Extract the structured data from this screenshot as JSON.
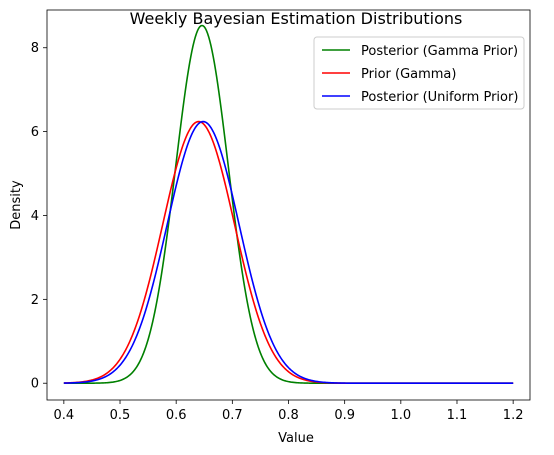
{
  "chart_data": {
    "type": "line",
    "title": "Weekly Bayesian Estimation Distributions",
    "xlabel": "Value",
    "ylabel": "Density",
    "xlim": [
      0.37,
      1.23
    ],
    "ylim": [
      -0.4,
      8.9
    ],
    "xticks": [
      0.4,
      0.5,
      0.6,
      0.7,
      0.8,
      0.9,
      1.0,
      1.1,
      1.2
    ],
    "xtick_labels": [
      "0.4",
      "0.5",
      "0.6",
      "0.7",
      "0.8",
      "0.9",
      "1.0",
      "1.1",
      "1.2"
    ],
    "yticks": [
      0,
      2,
      4,
      6,
      8
    ],
    "ytick_labels": [
      "0",
      "2",
      "4",
      "6",
      "8"
    ],
    "grid": false,
    "legend_position": "top-right",
    "series": [
      {
        "name": "Posterior (Gamma Prior)",
        "color": "#008000",
        "peak_x": 0.646,
        "peak_y": 8.53,
        "sd": 0.0468
      },
      {
        "name": "Prior (Gamma)",
        "color": "#ff0000",
        "peak_x": 0.64,
        "peak_y": 6.24,
        "sd": 0.064
      },
      {
        "name": "Posterior (Uniform Prior)",
        "color": "#0000ff",
        "peak_x": 0.648,
        "peak_y": 6.24,
        "sd": 0.064
      }
    ],
    "x_range": [
      0.4,
      1.2
    ]
  }
}
